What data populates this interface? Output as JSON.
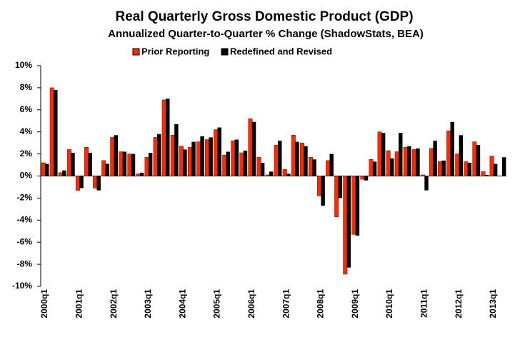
{
  "chart_data": {
    "type": "bar",
    "title": "Real Quarterly Gross Domestic Product (GDP)",
    "subtitle": "Annualized Quarter-to-Quarter % Change (ShadowStats, BEA)",
    "categories": [
      "2000q1",
      null,
      null,
      null,
      "2001q1",
      null,
      null,
      null,
      "2002q1",
      null,
      null,
      null,
      "2003q1",
      null,
      null,
      null,
      "2004q1",
      null,
      null,
      null,
      "2005q1",
      null,
      null,
      null,
      "2006q1",
      null,
      null,
      null,
      "2007q1",
      null,
      null,
      null,
      "2008q1",
      null,
      null,
      null,
      "2009q1",
      null,
      null,
      null,
      "2010q1",
      null,
      null,
      null,
      "2011q1",
      null,
      null,
      null,
      "2012q1",
      null,
      null,
      null,
      "2013q1",
      null
    ],
    "series": [
      {
        "name": "Prior Reporting",
        "color": "#ff2a00",
        "values": [
          1.2,
          8.0,
          0.3,
          2.4,
          -1.3,
          2.6,
          -1.1,
          1.4,
          3.5,
          2.2,
          2.0,
          0.2,
          1.7,
          3.5,
          6.9,
          3.7,
          2.7,
          2.6,
          3.1,
          3.3,
          4.2,
          1.9,
          3.2,
          2.1,
          5.2,
          1.7,
          0.1,
          2.8,
          0.6,
          3.7,
          3.0,
          1.7,
          -1.8,
          1.4,
          -3.7,
          -8.9,
          -5.3,
          -0.3,
          1.5,
          4.0,
          2.3,
          2.2,
          2.6,
          2.4,
          0.1,
          2.5,
          1.3,
          4.1,
          2.0,
          1.3,
          3.1,
          0.4,
          1.8,
          null
        ]
      },
      {
        "name": "Redefined and Revised",
        "color": "#000000",
        "values": [
          1.1,
          7.8,
          0.5,
          2.1,
          -1.1,
          2.1,
          -1.3,
          1.1,
          3.7,
          2.2,
          2.0,
          0.3,
          2.1,
          3.8,
          7.0,
          4.7,
          2.4,
          3.1,
          3.6,
          3.5,
          4.4,
          2.2,
          3.3,
          2.3,
          4.9,
          1.2,
          0.4,
          3.2,
          0.2,
          3.1,
          2.7,
          1.5,
          -2.7,
          2.0,
          -2.0,
          -8.3,
          -5.4,
          -0.4,
          1.3,
          3.9,
          1.6,
          3.9,
          2.7,
          2.5,
          -1.3,
          3.2,
          1.4,
          4.9,
          3.7,
          1.2,
          2.8,
          0.1,
          1.1,
          1.7
        ]
      }
    ],
    "ylim": [
      -10,
      10
    ],
    "yticks": [
      {
        "value": -10,
        "label": "-10%"
      },
      {
        "value": -8,
        "label": "-8%"
      },
      {
        "value": -6,
        "label": "-6%"
      },
      {
        "value": -4,
        "label": "-4%"
      },
      {
        "value": -2,
        "label": "-2%"
      },
      {
        "value": 0,
        "label": "0%"
      },
      {
        "value": 2,
        "label": "2%"
      },
      {
        "value": 4,
        "label": "4%"
      },
      {
        "value": 6,
        "label": "6%"
      },
      {
        "value": 8,
        "label": "8%"
      },
      {
        "value": 10,
        "label": "10%"
      }
    ],
    "grid": false
  }
}
